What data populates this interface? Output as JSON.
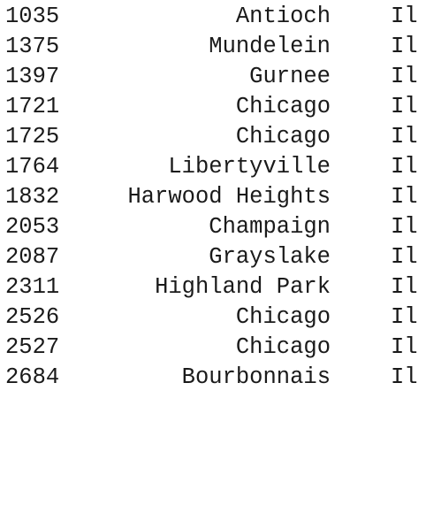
{
  "rows": [
    {
      "id": "1035",
      "city": "Antioch",
      "state": "Il"
    },
    {
      "id": "1375",
      "city": "Mundelein",
      "state": "Il"
    },
    {
      "id": "1397",
      "city": "Gurnee",
      "state": "Il"
    },
    {
      "id": "1721",
      "city": "Chicago",
      "state": "Il"
    },
    {
      "id": "1725",
      "city": "Chicago",
      "state": "Il"
    },
    {
      "id": "1764",
      "city": "Libertyville",
      "state": "Il"
    },
    {
      "id": "1832",
      "city": "Harwood Heights",
      "state": "Il"
    },
    {
      "id": "2053",
      "city": "Champaign",
      "state": "Il"
    },
    {
      "id": "2087",
      "city": "Grayslake",
      "state": "Il"
    },
    {
      "id": "2311",
      "city": "Highland Park",
      "state": "Il"
    },
    {
      "id": "2526",
      "city": "Chicago",
      "state": "Il"
    },
    {
      "id": "2527",
      "city": "Chicago",
      "state": "Il"
    },
    {
      "id": "2684",
      "city": "Bourbonnais",
      "state": "Il"
    }
  ]
}
